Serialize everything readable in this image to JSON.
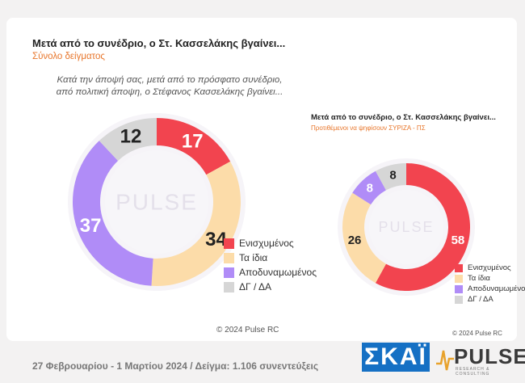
{
  "chart_data": [
    {
      "type": "pie",
      "style": "donut",
      "title": "Μετά από το συνέδριο, ο Στ. Κασσελάκης βγαίνει...",
      "subtitle": "Σύνολο δείγματος",
      "question": [
        "Κατά την άποψή σας, μετά από το πρόσφατο συνέδριο,",
        "από πολιτική άποψη, ο Στέφανος Κασσελάκης βγαίνει..."
      ],
      "categories": [
        "Ενισχυμένος",
        "Τα ίδια",
        "Αποδυναμωμένος",
        "ΔΓ / ΔΑ"
      ],
      "values": [
        17,
        34,
        37,
        12
      ],
      "colors": [
        "#f2444f",
        "#fcdca9",
        "#b08cf7",
        "#d6d6d6"
      ],
      "legend_position": "right",
      "watermark": "PULSE",
      "copyright": "© 2024 Pulse RC"
    },
    {
      "type": "pie",
      "style": "donut",
      "title": "Μετά από το συνέδριο, ο Στ. Κασσελάκης βγαίνει...",
      "subtitle": "Προτιθέμενοι να ψηφίσουν ΣΥΡΙΖΑ - ΠΣ",
      "categories": [
        "Ενισχυμένος",
        "Τα ίδια",
        "Αποδυναμωμένος",
        "ΔΓ / ΔΑ"
      ],
      "values": [
        58,
        26,
        8,
        8
      ],
      "colors": [
        "#f2444f",
        "#fcdca9",
        "#b08cf7",
        "#d6d6d6"
      ],
      "legend_position": "right",
      "watermark": "PULSE",
      "copyright": "© 2024 Pulse RC"
    }
  ],
  "footer": {
    "text": "27 Φεβρουαρίου - 1 Μαρτίου 2024  /  Δείγμα:  1.106 συνεντεύξεις",
    "skai_logo": "ΣΚΑΪ",
    "pulse_logo": "PULSE",
    "pulse_tagline": "RESEARCH & CONSULTING"
  },
  "colors": {
    "subtitle_left": "#e8762b",
    "subtitle_right": "#e8762b",
    "skai_blue": "#1570c4"
  }
}
